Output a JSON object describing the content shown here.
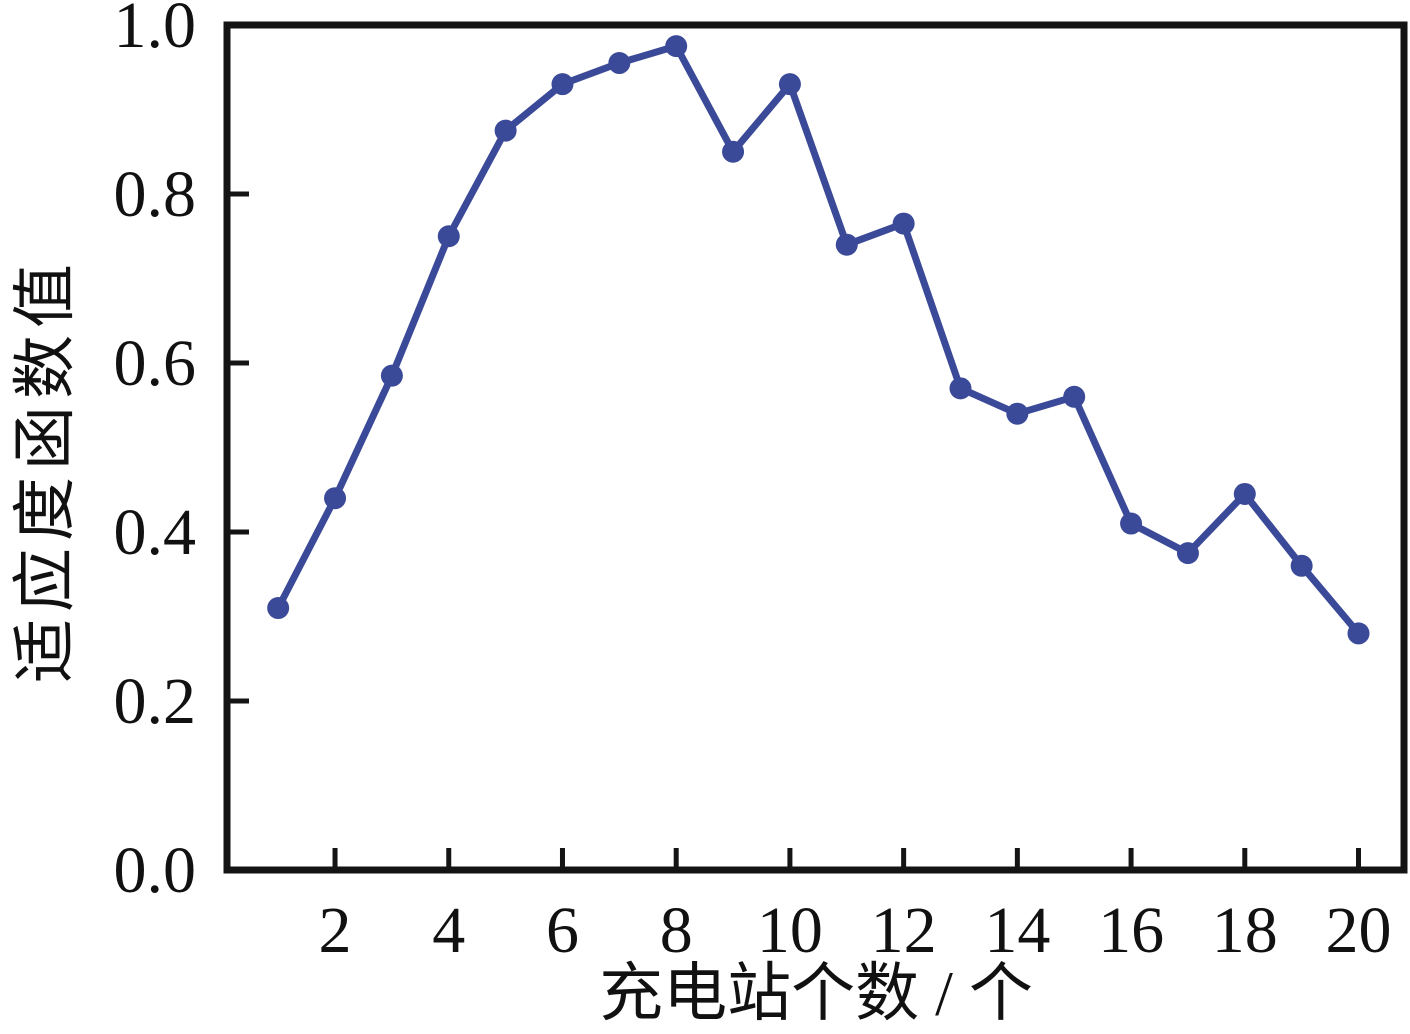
{
  "figure": {
    "background": "#ffffff",
    "series_color": "#3b4a98",
    "axis_color": "#141414",
    "text_color": "#111111"
  },
  "chart_data": {
    "type": "line",
    "title": "",
    "xlabel": "充电站个数 / 个",
    "ylabel": "适应度函数值",
    "x": [
      1,
      2,
      3,
      4,
      5,
      6,
      7,
      8,
      9,
      10,
      11,
      12,
      13,
      14,
      15,
      16,
      17,
      18,
      19,
      20
    ],
    "y": [
      0.31,
      0.44,
      0.585,
      0.75,
      0.875,
      0.93,
      0.955,
      0.975,
      0.85,
      0.93,
      0.74,
      0.765,
      0.57,
      0.54,
      0.56,
      0.41,
      0.375,
      0.445,
      0.36,
      0.28
    ],
    "series_name": "适应度函数值",
    "xlim": [
      0.1,
      20.8
    ],
    "ylim": [
      0.0,
      1.0
    ],
    "x_ticks": [
      2,
      4,
      6,
      8,
      10,
      12,
      14,
      16,
      18,
      20
    ],
    "x_tick_labels": [
      "2",
      "4",
      "6",
      "8",
      "10",
      "12",
      "14",
      "16",
      "18",
      "20"
    ],
    "y_ticks": [
      0.0,
      0.2,
      0.4,
      0.6,
      0.8,
      1.0
    ],
    "y_tick_labels": [
      "0.0",
      "0.2",
      "0.4",
      "0.6",
      "0.8",
      "1.0"
    ],
    "grid": false,
    "legend_position": "none",
    "marker": "circle",
    "ticks_direction": "in",
    "frame": "box"
  }
}
